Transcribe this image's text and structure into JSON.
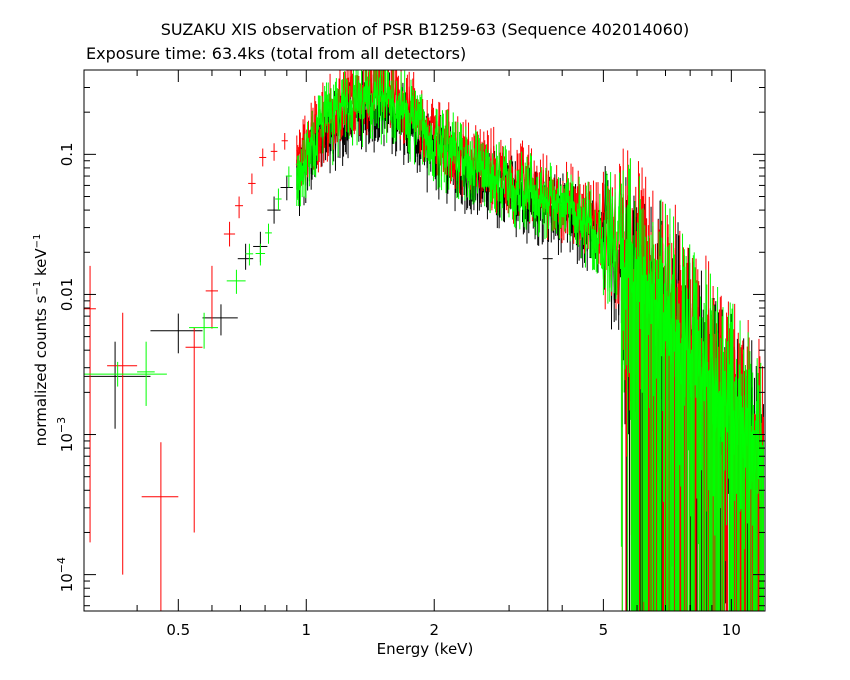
{
  "chart_data": {
    "type": "scatter",
    "title": "SUZAKU XIS observation of PSR B1259-63 (Sequence 402014060)",
    "subtitle": "Exposure time: 63.4ks (total from all detectors)",
    "xlabel": "Energy (keV)",
    "ylabel": {
      "base": "normalized counts s",
      "sup1": "−1",
      "mid": " keV",
      "sup2": "−1"
    },
    "x_scale": "log",
    "y_scale": "log",
    "xlim": [
      0.3,
      12.0
    ],
    "ylim": [
      5.5e-05,
      0.4
    ],
    "x_ticks": [
      {
        "value": 0.5,
        "label": "0.5"
      },
      {
        "value": 1,
        "label": "1"
      },
      {
        "value": 2,
        "label": "2"
      },
      {
        "value": 5,
        "label": "5"
      },
      {
        "value": 10,
        "label": "10"
      }
    ],
    "y_ticks": [
      {
        "value": 0.1,
        "mant": "0.1",
        "exp": ""
      },
      {
        "value": 0.01,
        "mant": "0.01",
        "exp": ""
      },
      {
        "value": 0.001,
        "mant": "10",
        "exp": "−3"
      },
      {
        "value": 0.0001,
        "mant": "10",
        "exp": "−4"
      }
    ],
    "colors": {
      "series_black": "#000000",
      "series_red": "#ff0000",
      "series_green": "#00ff00",
      "axis": "#000000"
    },
    "series": [
      {
        "color": "black",
        "points": [
          {
            "x": 0.355,
            "xlo": 0.3,
            "xhi": 0.43,
            "y": 0.0026,
            "ylo": 0.0011,
            "yhi": 0.0046
          },
          {
            "x": 0.5,
            "xlo": 0.43,
            "xhi": 0.57,
            "y": 0.0055,
            "ylo": 0.0038,
            "yhi": 0.0073
          },
          {
            "x": 0.63,
            "xlo": 0.57,
            "xhi": 0.69,
            "y": 0.0068,
            "ylo": 0.0051,
            "yhi": 0.0085
          },
          {
            "x": 0.72,
            "xlo": 0.69,
            "xhi": 0.75,
            "y": 0.018,
            "ylo": 0.015,
            "yhi": 0.023
          },
          {
            "x": 0.78,
            "xlo": 0.75,
            "xhi": 0.81,
            "y": 0.022,
            "ylo": 0.017,
            "yhi": 0.028
          },
          {
            "x": 0.84,
            "xlo": 0.81,
            "xhi": 0.87,
            "y": 0.04,
            "ylo": 0.032,
            "yhi": 0.05
          },
          {
            "x": 0.9,
            "xlo": 0.87,
            "xhi": 0.93,
            "y": 0.058,
            "ylo": 0.047,
            "yhi": 0.07
          },
          {
            "x": 3.7,
            "xlo": 3.6,
            "xhi": 3.8,
            "y": 0.018,
            "ylo": 5.5e-05,
            "yhi": 0.028
          }
        ]
      },
      {
        "color": "red",
        "points": [
          {
            "x": 0.31,
            "xlo": 0.3,
            "xhi": 0.32,
            "y": 0.0079,
            "ylo": 0.00017,
            "yhi": 0.016
          },
          {
            "x": 0.37,
            "xlo": 0.34,
            "xhi": 0.4,
            "y": 0.0031,
            "ylo": 0.0001,
            "yhi": 0.0074
          },
          {
            "x": 0.455,
            "xlo": 0.41,
            "xhi": 0.5,
            "y": 0.00036,
            "ylo": 5.5e-05,
            "yhi": 0.00088
          },
          {
            "x": 0.545,
            "xlo": 0.52,
            "xhi": 0.57,
            "y": 0.0042,
            "ylo": 0.0002,
            "yhi": 0.0058
          },
          {
            "x": 0.6,
            "xlo": 0.58,
            "xhi": 0.62,
            "y": 0.0106,
            "ylo": 0.0057,
            "yhi": 0.016
          },
          {
            "x": 0.66,
            "xlo": 0.64,
            "xhi": 0.68,
            "y": 0.027,
            "ylo": 0.022,
            "yhi": 0.033
          },
          {
            "x": 0.695,
            "xlo": 0.68,
            "xhi": 0.71,
            "y": 0.043,
            "ylo": 0.035,
            "yhi": 0.05
          },
          {
            "x": 0.745,
            "xlo": 0.73,
            "xhi": 0.76,
            "y": 0.062,
            "ylo": 0.052,
            "yhi": 0.073
          },
          {
            "x": 0.79,
            "xlo": 0.775,
            "xhi": 0.805,
            "y": 0.095,
            "ylo": 0.082,
            "yhi": 0.11
          },
          {
            "x": 0.84,
            "xlo": 0.825,
            "xhi": 0.855,
            "y": 0.105,
            "ylo": 0.09,
            "yhi": 0.12
          },
          {
            "x": 0.89,
            "xlo": 0.875,
            "xhi": 0.905,
            "y": 0.125,
            "ylo": 0.108,
            "yhi": 0.142
          },
          {
            "x": 7.4,
            "xlo": 7.3,
            "xhi": 7.5,
            "y": 0.00055,
            "ylo": 5.5e-05,
            "yhi": 0.0015
          },
          {
            "x": 10.1,
            "xlo": 9.9,
            "xhi": 10.3,
            "y": 0.0004,
            "ylo": 5.5e-05,
            "yhi": 0.0017
          }
        ]
      },
      {
        "color": "green",
        "points": [
          {
            "x": 0.36,
            "xlo": 0.3,
            "xhi": 0.47,
            "y": 0.0027,
            "ylo": 0.0022,
            "yhi": 0.0033
          },
          {
            "x": 0.42,
            "xlo": 0.4,
            "xhi": 0.44,
            "y": 0.0028,
            "ylo": 0.0016,
            "yhi": 0.0046
          },
          {
            "x": 0.575,
            "xlo": 0.53,
            "xhi": 0.62,
            "y": 0.0058,
            "ylo": 0.0041,
            "yhi": 0.0074
          },
          {
            "x": 0.685,
            "xlo": 0.65,
            "xhi": 0.72,
            "y": 0.0125,
            "ylo": 0.0101,
            "yhi": 0.015
          },
          {
            "x": 0.735,
            "xlo": 0.72,
            "xhi": 0.75,
            "y": 0.0195,
            "ylo": 0.0161,
            "yhi": 0.023
          },
          {
            "x": 0.78,
            "xlo": 0.76,
            "xhi": 0.8,
            "y": 0.0196,
            "ylo": 0.0161,
            "yhi": 0.023
          },
          {
            "x": 0.815,
            "xlo": 0.8,
            "xhi": 0.83,
            "y": 0.0275,
            "ylo": 0.023,
            "yhi": 0.032
          },
          {
            "x": 0.86,
            "xlo": 0.845,
            "xhi": 0.875,
            "y": 0.048,
            "ylo": 0.04,
            "yhi": 0.057
          },
          {
            "x": 0.91,
            "xlo": 0.895,
            "xhi": 0.925,
            "y": 0.07,
            "ylo": 0.058,
            "yhi": 0.082
          },
          {
            "x": 0.96,
            "xlo": 0.945,
            "xhi": 0.975,
            "y": 0.085,
            "ylo": 0.072,
            "yhi": 0.099
          }
        ]
      }
    ],
    "dense_region": {
      "x_start": 0.95,
      "x_end": 11.9,
      "profile": [
        {
          "x": 0.95,
          "y": 0.075
        },
        {
          "x": 1.1,
          "y": 0.16
        },
        {
          "x": 1.3,
          "y": 0.23
        },
        {
          "x": 1.5,
          "y": 0.25
        },
        {
          "x": 1.7,
          "y": 0.2
        },
        {
          "x": 2.0,
          "y": 0.12
        },
        {
          "x": 2.5,
          "y": 0.08
        },
        {
          "x": 3.0,
          "y": 0.062
        },
        {
          "x": 4.0,
          "y": 0.042
        },
        {
          "x": 5.0,
          "y": 0.028
        },
        {
          "x": 6.0,
          "y": 0.017
        },
        {
          "x": 7.0,
          "y": 0.009
        },
        {
          "x": 8.0,
          "y": 0.0045
        },
        {
          "x": 9.0,
          "y": 0.0025
        },
        {
          "x": 10.0,
          "y": 0.0015
        },
        {
          "x": 11.9,
          "y": 0.0008
        }
      ],
      "series_scale": {
        "black": 0.85,
        "red": 1.12,
        "green": 1.0
      }
    }
  }
}
